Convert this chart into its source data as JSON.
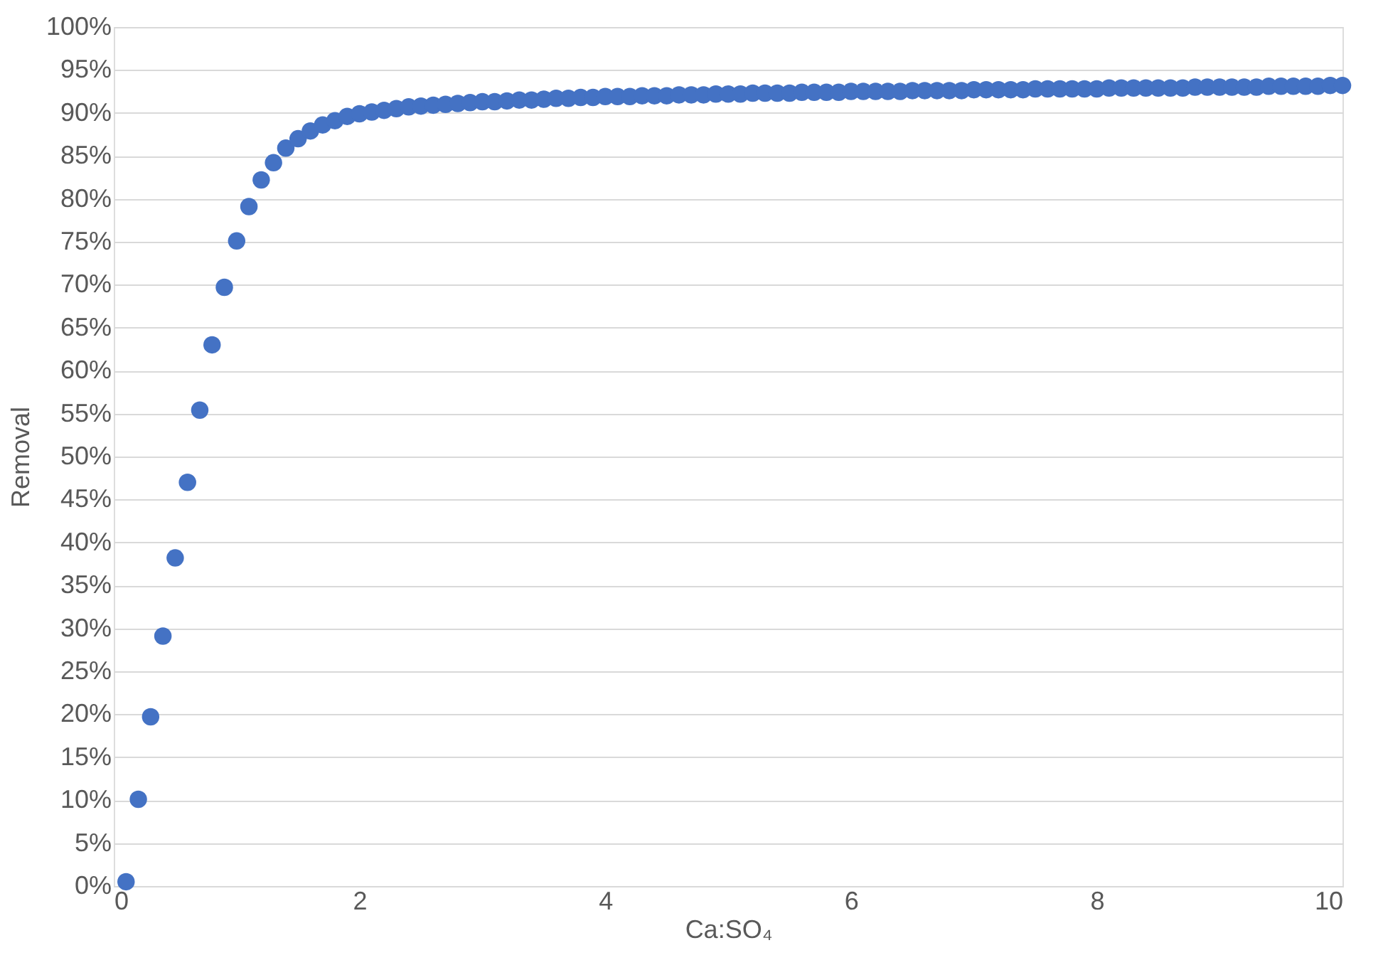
{
  "chart_data": {
    "type": "scatter",
    "xlabel": "Ca:SO₄",
    "ylabel": "Removal",
    "marker": "circle",
    "grid": "y",
    "xlim": [
      0,
      10
    ],
    "xticks": [
      0,
      2,
      4,
      6,
      8,
      10
    ],
    "ylim": [
      0,
      100
    ],
    "yticks": [
      {
        "value": 0,
        "label": "0%"
      },
      {
        "value": 5,
        "label": "5%"
      },
      {
        "value": 10,
        "label": "10%"
      },
      {
        "value": 15,
        "label": "15%"
      },
      {
        "value": 20,
        "label": "20%"
      },
      {
        "value": 25,
        "label": "25%"
      },
      {
        "value": 30,
        "label": "30%"
      },
      {
        "value": 35,
        "label": "35%"
      },
      {
        "value": 40,
        "label": "40%"
      },
      {
        "value": 45,
        "label": "45%"
      },
      {
        "value": 50,
        "label": "50%"
      },
      {
        "value": 55,
        "label": "55%"
      },
      {
        "value": 60,
        "label": "60%"
      },
      {
        "value": 65,
        "label": "65%"
      },
      {
        "value": 70,
        "label": "70%"
      },
      {
        "value": 75,
        "label": "75%"
      },
      {
        "value": 80,
        "label": "80%"
      },
      {
        "value": 85,
        "label": "85%"
      },
      {
        "value": 90,
        "label": "90%"
      },
      {
        "value": 95,
        "label": "95%"
      },
      {
        "value": 100,
        "label": "100%"
      }
    ],
    "series": [
      {
        "color": "#4472c4",
        "x": [
          0.1,
          0.2,
          0.3,
          0.4,
          0.5,
          0.6,
          0.7,
          0.8,
          0.9,
          1.0,
          1.1,
          1.2,
          1.3,
          1.4,
          1.5,
          1.6,
          1.7,
          1.8,
          1.9,
          2.0,
          2.1,
          2.2,
          2.3,
          2.4,
          2.5,
          2.6,
          2.7,
          2.8,
          2.9,
          3.0,
          3.1,
          3.2,
          3.3,
          3.4,
          3.5,
          3.6,
          3.7,
          3.8,
          3.9,
          4.0,
          4.1,
          4.2,
          4.3,
          4.4,
          4.5,
          4.6,
          4.7,
          4.8,
          4.9,
          5.0,
          5.1,
          5.2,
          5.3,
          5.4,
          5.5,
          5.6,
          5.7,
          5.8,
          5.9,
          6.0,
          6.1,
          6.2,
          6.3,
          6.4,
          6.5,
          6.6,
          6.7,
          6.8,
          6.9,
          7.0,
          7.1,
          7.2,
          7.3,
          7.4,
          7.5,
          7.6,
          7.7,
          7.8,
          7.9,
          8.0,
          8.1,
          8.2,
          8.3,
          8.4,
          8.5,
          8.6,
          8.7,
          8.8,
          8.9,
          9.0,
          9.1,
          9.2,
          9.3,
          9.4,
          9.5,
          9.6,
          9.7,
          9.8,
          9.9,
          10.0
        ],
        "values": [
          0.5,
          10.1,
          19.7,
          29.1,
          38.2,
          47.0,
          55.4,
          63.0,
          69.7,
          75.1,
          79.1,
          82.2,
          84.2,
          85.9,
          87.0,
          87.9,
          88.6,
          89.1,
          89.6,
          89.9,
          90.1,
          90.3,
          90.5,
          90.7,
          90.8,
          90.9,
          91.0,
          91.1,
          91.2,
          91.3,
          91.3,
          91.4,
          91.5,
          91.5,
          91.6,
          91.7,
          91.7,
          91.8,
          91.8,
          91.9,
          91.9,
          91.9,
          92.0,
          92.0,
          92.0,
          92.1,
          92.1,
          92.1,
          92.2,
          92.2,
          92.2,
          92.3,
          92.3,
          92.3,
          92.3,
          92.4,
          92.4,
          92.4,
          92.4,
          92.5,
          92.5,
          92.5,
          92.5,
          92.5,
          92.6,
          92.6,
          92.6,
          92.6,
          92.6,
          92.7,
          92.7,
          92.7,
          92.7,
          92.7,
          92.8,
          92.8,
          92.8,
          92.8,
          92.8,
          92.8,
          92.9,
          92.9,
          92.9,
          92.9,
          92.9,
          92.9,
          92.9,
          93.0,
          93.0,
          93.0,
          93.0,
          93.0,
          93.0,
          93.1,
          93.1,
          93.1,
          93.1,
          93.1,
          93.2,
          93.2
        ]
      }
    ]
  }
}
